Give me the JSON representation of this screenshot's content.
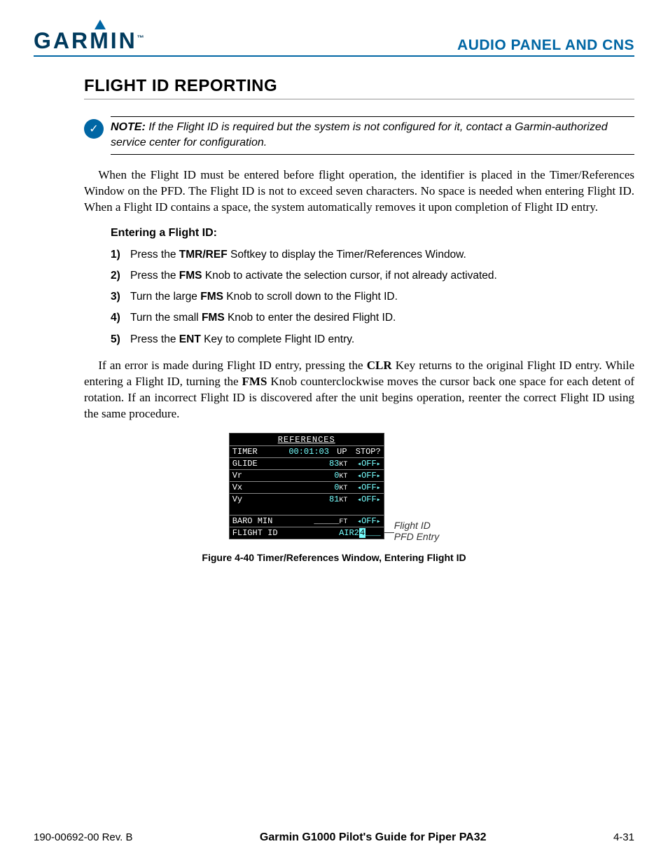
{
  "header": {
    "logo_text": "GARMIN",
    "section": "AUDIO PANEL AND CNS"
  },
  "title": "FLIGHT ID REPORTING",
  "note": {
    "label": "NOTE:",
    "text": " If the Flight ID is required but the system is not configured for it, contact a Garmin-authorized service center for configuration."
  },
  "para1_a": "When the Flight ID must be entered before flight operation, the identifier is placed in the Timer/References Window on the PFD.  The Flight ID is not to exceed seven characters.  No space is needed when entering Flight ID.  When a Flight ID contains a space, the system automatically removes it upon completion of Flight ID entry.",
  "sub1": "Entering a Flight ID:",
  "steps": [
    {
      "n": "1)",
      "pre": "Press the ",
      "b": "TMR/REF",
      "post": " Softkey to display the Timer/References Window."
    },
    {
      "n": "2)",
      "pre": "Press the ",
      "b": "FMS",
      "post": " Knob to activate the selection cursor, if not already activated."
    },
    {
      "n": "3)",
      "pre": "Turn the large ",
      "b": "FMS",
      "post": " Knob to scroll down to the Flight ID."
    },
    {
      "n": "4)",
      "pre": "Turn the small ",
      "b": "FMS",
      "post": " Knob to enter the desired Flight ID."
    },
    {
      "n": "5)",
      "pre": "Press the ",
      "b": "ENT",
      "post": " Key to complete Flight ID entry."
    }
  ],
  "para2_a": "If an error is made during Flight ID entry, pressing the ",
  "para2_b1": "CLR",
  "para2_c": " Key returns to the original Flight ID entry.  While entering a Flight ID, turning the ",
  "para2_b2": "FMS",
  "para2_d": " Knob counterclockwise moves the cursor back one space for each detent of rotation.  If an incorrect Flight ID is discovered after the unit begins operation, reenter the correct Flight ID using the same procedure.",
  "pfd": {
    "title": "REFERENCES",
    "timer": {
      "label": "TIMER",
      "value": "00:01:03",
      "dir": "UP",
      "state": "STOP?"
    },
    "rows": [
      {
        "label": "GLIDE",
        "val": "83",
        "unit": "KT",
        "state": "OFF"
      },
      {
        "label": "Vr",
        "val": "0",
        "unit": "KT",
        "state": "OFF"
      },
      {
        "label": "Vx",
        "val": "0",
        "unit": "KT",
        "state": "OFF"
      },
      {
        "label": "Vy",
        "val": "81",
        "unit": "KT",
        "state": "OFF"
      }
    ],
    "baro": {
      "label": "BARO MIN",
      "val": "_____",
      "unit": "FT",
      "state": "OFF"
    },
    "fid": {
      "label": "FLIGHT ID",
      "val": "AIR2",
      "cursor": "4",
      "tail": "___"
    }
  },
  "callout1": "Flight ID",
  "callout2": "PFD Entry",
  "figcap": "Figure 4-40  Timer/References Window, Entering Flight ID",
  "footer": {
    "left": "190-00692-00  Rev. B",
    "mid": "Garmin G1000 Pilot's Guide for Piper PA32",
    "right": "4-31"
  }
}
